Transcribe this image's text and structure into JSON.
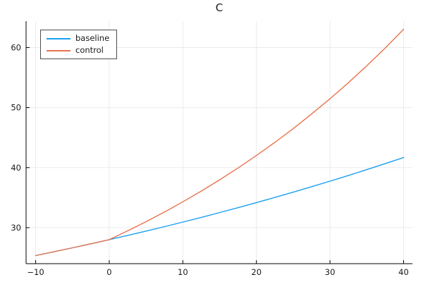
{
  "title": "C",
  "legend": {
    "position": "top-left",
    "entries": [
      {
        "label": "baseline",
        "color": "#1aa0f0"
      },
      {
        "label": "control",
        "color": "#e8734e"
      }
    ]
  },
  "axes": {
    "x": {
      "ticks": [
        -10,
        0,
        10,
        20,
        30,
        40
      ],
      "tick_labels": [
        "−10",
        "0",
        "10",
        "20",
        "30",
        "40"
      ],
      "lim": [
        -11.3,
        41.2
      ]
    },
    "y": {
      "ticks": [
        30,
        40,
        50,
        60
      ],
      "tick_labels": [
        "30",
        "40",
        "50",
        "60"
      ],
      "lim": [
        24.0,
        64.4
      ]
    }
  },
  "style": {
    "background": "#ffffff",
    "grid_color": "#ebebeb",
    "spine_color": "#000000",
    "tick_label_color": "#1a1a1a",
    "legend_border_color": "#4d4d4d",
    "series_blue": "#1aa0f0",
    "series_orange": "#e8734e"
  },
  "chart_data": {
    "type": "line",
    "title": "C",
    "xlabel": "",
    "ylabel": "",
    "grid": true,
    "legend_position": "top-left",
    "xlim": [
      -11.3,
      41.2
    ],
    "ylim": [
      24.0,
      64.4
    ],
    "x": [
      -10,
      -7.5,
      -5,
      -2.5,
      0,
      2.5,
      5,
      7.5,
      10,
      12.5,
      15,
      17.5,
      20,
      22.5,
      25,
      27.5,
      30,
      32.5,
      35,
      37.5,
      40
    ],
    "series": [
      {
        "name": "baseline",
        "color": "#1aa0f0",
        "values": [
          25.35,
          25.99,
          26.64,
          27.31,
          28.0,
          28.71,
          29.43,
          30.17,
          30.93,
          31.71,
          32.51,
          33.33,
          34.17,
          35.03,
          35.91,
          36.82,
          37.74,
          38.69,
          39.67,
          40.67,
          41.69
        ]
      },
      {
        "name": "control",
        "color": "#e8734e",
        "values": [
          25.35,
          25.99,
          26.64,
          27.31,
          28.0,
          29.46,
          30.99,
          32.6,
          34.3,
          36.08,
          37.96,
          39.94,
          42.02,
          44.2,
          46.5,
          48.93,
          51.47,
          54.15,
          56.97,
          59.93,
          63.05
        ]
      }
    ]
  }
}
